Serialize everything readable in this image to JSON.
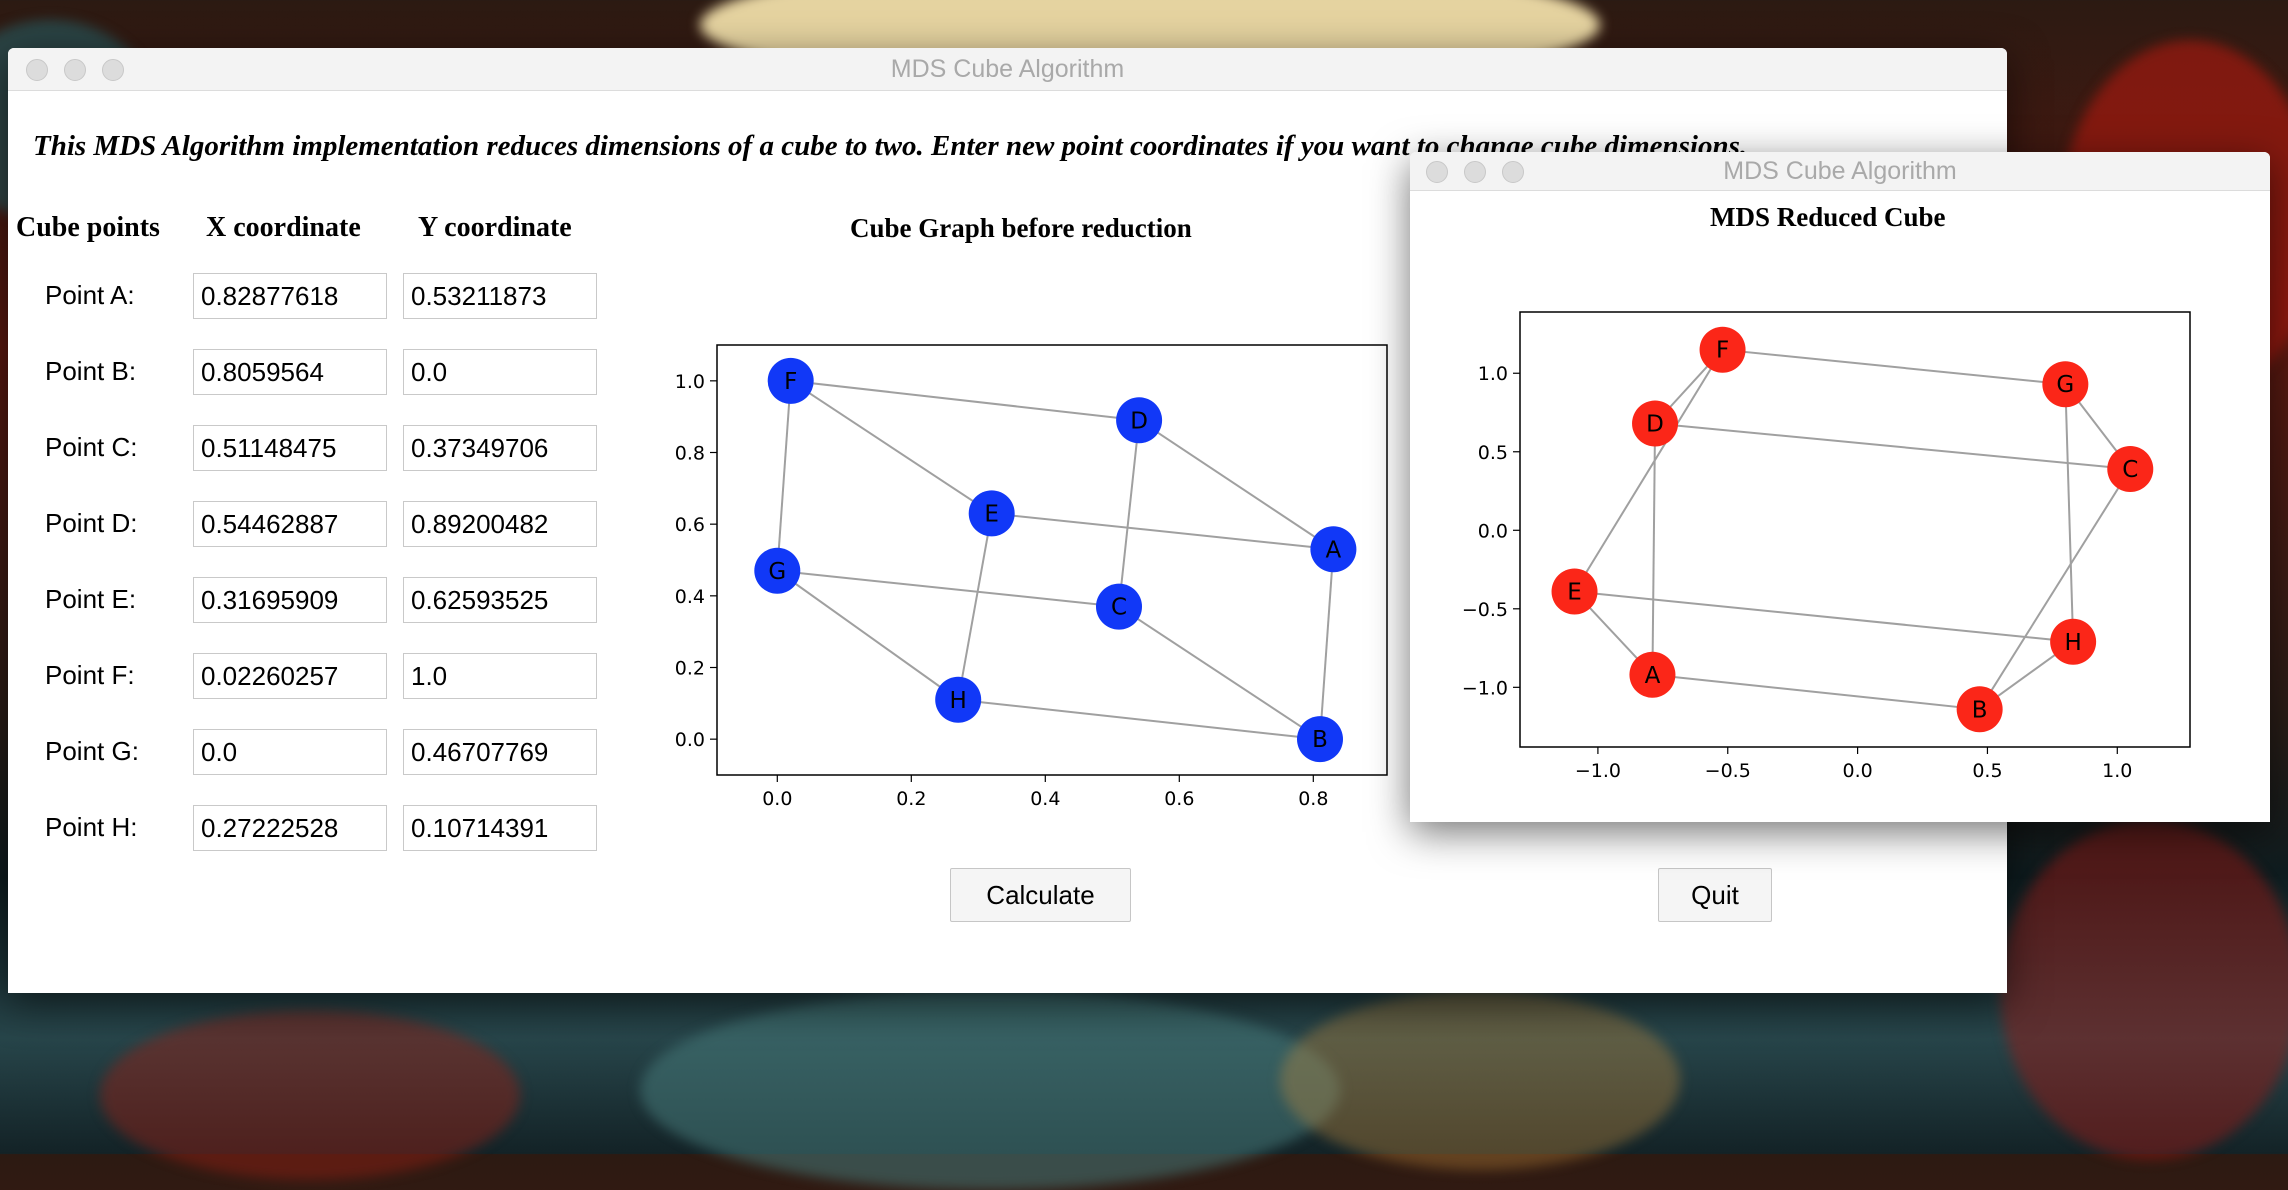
{
  "main_window": {
    "title": "MDS Cube Algorithm",
    "header": "This MDS Algorithm implementation reduces dimensions of a cube to two. Enter new point coordinates if you want to change cube dimensions.",
    "columns": {
      "points": "Cube points",
      "x": "X coordinate",
      "y": "Y coordinate"
    },
    "points": [
      {
        "label": "Point A:",
        "x": "0.82877618",
        "y": "0.53211873"
      },
      {
        "label": "Point B:",
        "x": "0.8059564",
        "y": "0.0"
      },
      {
        "label": "Point C:",
        "x": "0.51148475",
        "y": "0.37349706"
      },
      {
        "label": "Point D:",
        "x": "0.54462887",
        "y": "0.89200482"
      },
      {
        "label": "Point E:",
        "x": "0.31695909",
        "y": "0.62593525"
      },
      {
        "label": "Point F:",
        "x": "0.02260257",
        "y": "1.0"
      },
      {
        "label": "Point G:",
        "x": "0.0",
        "y": "0.46707769"
      },
      {
        "label": "Point H:",
        "x": "0.27222528",
        "y": "0.10714391"
      }
    ],
    "graph_title": "Cube Graph before reduction",
    "calculate_label": "Calculate",
    "quit_label": "Quit"
  },
  "result_window": {
    "title": "MDS Cube Algorithm",
    "graph_title": "MDS Reduced Cube"
  },
  "chart_data": [
    {
      "type": "scatter",
      "title": "Cube Graph before reduction",
      "node_color": "#1138f7",
      "xlim": [
        -0.09,
        0.91
      ],
      "ylim": [
        -0.1,
        1.1
      ],
      "xticks": [
        0.0,
        0.2,
        0.4,
        0.6,
        0.8
      ],
      "yticks": [
        0.0,
        0.2,
        0.4,
        0.6,
        0.8,
        1.0
      ],
      "tick_labels_x": [
        "0.0",
        "0.2",
        "0.4",
        "0.6",
        "0.8"
      ],
      "tick_labels_y": [
        "0.0",
        "0.2",
        "0.4",
        "0.6",
        "0.8",
        "1.0"
      ],
      "nodes": [
        {
          "name": "A",
          "x": 0.83,
          "y": 0.53
        },
        {
          "name": "B",
          "x": 0.81,
          "y": 0.0
        },
        {
          "name": "C",
          "x": 0.51,
          "y": 0.37
        },
        {
          "name": "D",
          "x": 0.54,
          "y": 0.89
        },
        {
          "name": "E",
          "x": 0.32,
          "y": 0.63
        },
        {
          "name": "F",
          "x": 0.02,
          "y": 1.0
        },
        {
          "name": "G",
          "x": 0.0,
          "y": 0.47
        },
        {
          "name": "H",
          "x": 0.27,
          "y": 0.11
        }
      ],
      "edges": [
        [
          "F",
          "D"
        ],
        [
          "F",
          "E"
        ],
        [
          "F",
          "G"
        ],
        [
          "D",
          "A"
        ],
        [
          "D",
          "C"
        ],
        [
          "E",
          "A"
        ],
        [
          "E",
          "H"
        ],
        [
          "G",
          "C"
        ],
        [
          "G",
          "H"
        ],
        [
          "C",
          "B"
        ],
        [
          "A",
          "B"
        ],
        [
          "H",
          "B"
        ]
      ]
    },
    {
      "type": "scatter",
      "title": "MDS Reduced Cube",
      "node_color": "#fb2618",
      "xlim": [
        -1.3,
        1.28
      ],
      "ylim": [
        -1.38,
        1.39
      ],
      "xticks": [
        -1.0,
        -0.5,
        0.0,
        0.5,
        1.0
      ],
      "yticks": [
        -1.0,
        -0.5,
        0.0,
        0.5,
        1.0
      ],
      "tick_labels_x": [
        "−1.0",
        "−0.5",
        "0.0",
        "0.5",
        "1.0"
      ],
      "tick_labels_y": [
        "−1.0",
        "−0.5",
        "0.0",
        "0.5",
        "1.0"
      ],
      "nodes": [
        {
          "name": "F",
          "x": -0.52,
          "y": 1.15
        },
        {
          "name": "G",
          "x": 0.8,
          "y": 0.93
        },
        {
          "name": "D",
          "x": -0.78,
          "y": 0.68
        },
        {
          "name": "C",
          "x": 1.05,
          "y": 0.39
        },
        {
          "name": "E",
          "x": -1.09,
          "y": -0.39
        },
        {
          "name": "H",
          "x": 0.83,
          "y": -0.71
        },
        {
          "name": "A",
          "x": -0.79,
          "y": -0.92
        },
        {
          "name": "B",
          "x": 0.47,
          "y": -1.14
        }
      ],
      "edges": [
        [
          "F",
          "G"
        ],
        [
          "F",
          "D"
        ],
        [
          "F",
          "E"
        ],
        [
          "G",
          "C"
        ],
        [
          "G",
          "H"
        ],
        [
          "D",
          "C"
        ],
        [
          "D",
          "A"
        ],
        [
          "E",
          "H"
        ],
        [
          "E",
          "A"
        ],
        [
          "C",
          "B"
        ],
        [
          "A",
          "B"
        ],
        [
          "H",
          "B"
        ]
      ]
    }
  ]
}
